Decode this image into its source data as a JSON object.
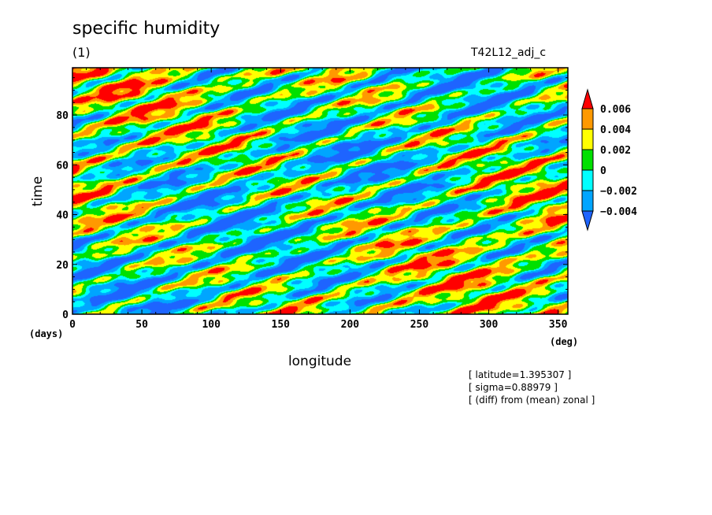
{
  "header": {
    "title": "specific humidity",
    "subtitle": "(1)",
    "run_label": "T42L12_adj_c"
  },
  "notes": [
    "[ latitude=1.395307 ]",
    "[ sigma=0.88979 ]",
    "[ (diff) from (mean) zonal ]"
  ],
  "chart_data": {
    "type": "heatmap",
    "title": "specific humidity",
    "subtitle": "(1)",
    "xlabel": "longitude",
    "ylabel": "time",
    "x_unit": "(deg)",
    "y_unit": "(days)",
    "xlim": [
      0,
      357
    ],
    "ylim": [
      0,
      99
    ],
    "x_ticks": [
      0,
      50,
      100,
      150,
      200,
      250,
      300,
      350
    ],
    "y_ticks": [
      0,
      20,
      40,
      60,
      80
    ],
    "colorbar": {
      "levels": [
        "0.006",
        "0.004",
        "0.002",
        "0",
        "−0.002",
        "−0.004"
      ],
      "colors": [
        "#1e64ff",
        "#00a5ff",
        "#00ffff",
        "#00e000",
        "#ffff00",
        "#ff9900",
        "#ff0000"
      ],
      "extend": "both"
    },
    "field_description": "zonal anomaly pattern, predominantly alternating bands tilted eastward, values roughly between -0.006 and 0.006"
  }
}
